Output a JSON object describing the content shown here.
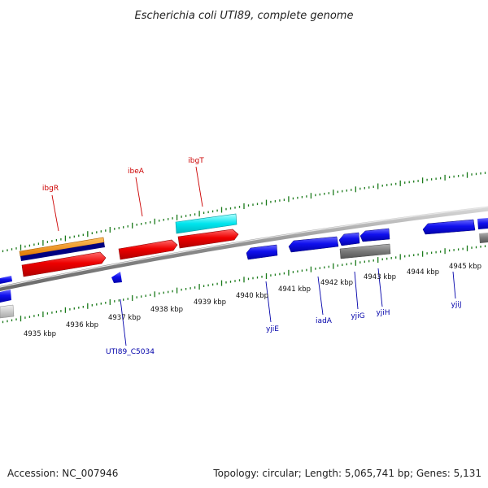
{
  "title": "Escherichia coli UTI89, complete genome",
  "footer": {
    "accession": "Accession: NC_007946",
    "stats": "Topology: circular; Length: 5,065,741 bp; Genes: 5,131"
  },
  "colors": {
    "backbone_dark": "#888888",
    "backbone_light": "#d0d0d0",
    "tick": "#1a7a1a",
    "gene_red": "#ee0000",
    "gene_orange": "#ff8c00",
    "gene_navy": "#000080",
    "gene_cyan": "#00e5ee",
    "gene_blue": "#1010ee",
    "gene_gray": "#7a7a7a",
    "gene_silver": "#bdbdbd",
    "label_top": "#cc0000",
    "label_bottom": "#0000aa"
  },
  "scale_labels": [
    "4935 kbp",
    "4936 kbp",
    "4937 kbp",
    "4938 kbp",
    "4939 kbp",
    "4940 kbp",
    "4941 kbp",
    "4942 kbp",
    "4943 kbp",
    "4944 kbp",
    "4945 kbp"
  ],
  "gene_labels_top": [
    "ibgR",
    "ibeA",
    "ibgT"
  ],
  "gene_labels_bottom": [
    "UTI89_C5034",
    "yjiE",
    "iadA",
    "yjiG",
    "yjiH",
    "yjiJ"
  ]
}
